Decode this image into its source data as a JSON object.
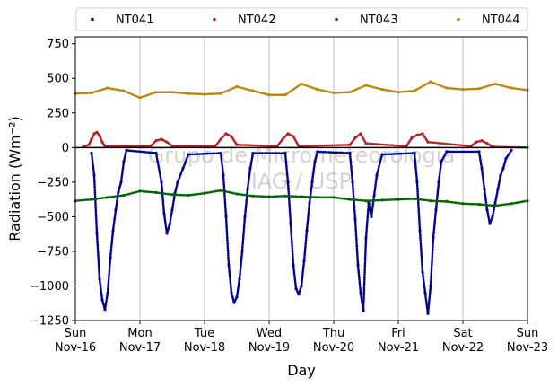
{
  "chart_data": {
    "type": "scatter",
    "xlabel": "Day",
    "ylabel": "Radiation (Wm⁻²)",
    "ylim": [
      -1250,
      800
    ],
    "yticks": [
      -1250,
      -1000,
      -750,
      -500,
      -250,
      0,
      250,
      500,
      750
    ],
    "xlim": [
      "2020-11-16",
      "2020-11-23"
    ],
    "xticks": [
      {
        "date": "2020-11-16",
        "label": "Sun\nNov-16"
      },
      {
        "date": "2020-11-17",
        "label": "Mon\nNov-17"
      },
      {
        "date": "2020-11-18",
        "label": "Tue\nNov-18"
      },
      {
        "date": "2020-11-19",
        "label": "Wed\nNov-19"
      },
      {
        "date": "2020-11-20",
        "label": "Thu\nNov-20"
      },
      {
        "date": "2020-11-21",
        "label": "Fri\nNov-21"
      },
      {
        "date": "2020-11-22",
        "label": "Sat\nNov-22"
      },
      {
        "date": "2020-11-23",
        "label": "Sun\nNov-23"
      }
    ],
    "grid": "vertical",
    "legend_position": "top",
    "watermark": [
      "Grupo de Micrometeorologia",
      "IAG / USP"
    ],
    "series": [
      {
        "name": "NT041",
        "color": "#00008b",
        "points": [
          [
            "2020-11-16T06:00",
            -40
          ],
          [
            "2020-11-16T07:00",
            -200
          ],
          [
            "2020-11-16T08:00",
            -620
          ],
          [
            "2020-11-16T09:00",
            -950
          ],
          [
            "2020-11-16T10:00",
            -1100
          ],
          [
            "2020-11-16T11:00",
            -1170
          ],
          [
            "2020-11-16T12:00",
            -1050
          ],
          [
            "2020-11-16T13:00",
            -800
          ],
          [
            "2020-11-16T14:00",
            -600
          ],
          [
            "2020-11-16T15:00",
            -450
          ],
          [
            "2020-11-16T16:00",
            -320
          ],
          [
            "2020-11-16T17:00",
            -250
          ],
          [
            "2020-11-16T18:00",
            -100
          ],
          [
            "2020-11-16T19:00",
            -20
          ],
          [
            "2020-11-17T06:00",
            -40
          ],
          [
            "2020-11-17T08:00",
            -250
          ],
          [
            "2020-11-17T09:00",
            -480
          ],
          [
            "2020-11-17T10:00",
            -620
          ],
          [
            "2020-11-17T11:00",
            -560
          ],
          [
            "2020-11-17T12:00",
            -450
          ],
          [
            "2020-11-17T13:00",
            -330
          ],
          [
            "2020-11-17T14:00",
            -250
          ],
          [
            "2020-11-17T16:00",
            -150
          ],
          [
            "2020-11-17T18:00",
            -50
          ],
          [
            "2020-11-18T06:00",
            -40
          ],
          [
            "2020-11-18T07:00",
            -200
          ],
          [
            "2020-11-18T08:00",
            -500
          ],
          [
            "2020-11-18T09:00",
            -850
          ],
          [
            "2020-11-18T10:00",
            -1050
          ],
          [
            "2020-11-18T11:00",
            -1120
          ],
          [
            "2020-11-18T12:00",
            -1080
          ],
          [
            "2020-11-18T13:00",
            -950
          ],
          [
            "2020-11-18T14:00",
            -750
          ],
          [
            "2020-11-18T15:00",
            -500
          ],
          [
            "2020-11-18T16:00",
            -300
          ],
          [
            "2020-11-18T17:00",
            -150
          ],
          [
            "2020-11-18T18:00",
            -40
          ],
          [
            "2020-11-19T06:00",
            -40
          ],
          [
            "2020-11-19T07:00",
            -250
          ],
          [
            "2020-11-19T08:00",
            -550
          ],
          [
            "2020-11-19T09:00",
            -850
          ],
          [
            "2020-11-19T10:00",
            -1020
          ],
          [
            "2020-11-19T11:00",
            -1060
          ],
          [
            "2020-11-19T12:00",
            -1000
          ],
          [
            "2020-11-19T13:00",
            -820
          ],
          [
            "2020-11-19T14:00",
            -600
          ],
          [
            "2020-11-19T15:00",
            -400
          ],
          [
            "2020-11-19T16:00",
            -250
          ],
          [
            "2020-11-19T17:00",
            -100
          ],
          [
            "2020-11-19T18:00",
            -30
          ],
          [
            "2020-11-20T06:00",
            -40
          ],
          [
            "2020-11-20T07:00",
            -250
          ],
          [
            "2020-11-20T08:00",
            -520
          ],
          [
            "2020-11-20T09:00",
            -850
          ],
          [
            "2020-11-20T10:00",
            -1050
          ],
          [
            "2020-11-20T11:00",
            -1180
          ],
          [
            "2020-11-20T12:00",
            -650
          ],
          [
            "2020-11-20T13:00",
            -400
          ],
          [
            "2020-11-20T14:00",
            -500
          ],
          [
            "2020-11-20T15:00",
            -350
          ],
          [
            "2020-11-20T16:00",
            -200
          ],
          [
            "2020-11-20T18:00",
            -50
          ],
          [
            "2020-11-21T06:00",
            -40
          ],
          [
            "2020-11-21T07:00",
            -250
          ],
          [
            "2020-11-21T08:00",
            -600
          ],
          [
            "2020-11-21T09:00",
            -900
          ],
          [
            "2020-11-21T10:00",
            -1050
          ],
          [
            "2020-11-21T11:00",
            -1200
          ],
          [
            "2020-11-21T12:00",
            -1000
          ],
          [
            "2020-11-21T13:00",
            -650
          ],
          [
            "2020-11-21T14:00",
            -450
          ],
          [
            "2020-11-21T15:00",
            -250
          ],
          [
            "2020-11-21T16:00",
            -100
          ],
          [
            "2020-11-21T18:00",
            -30
          ],
          [
            "2020-11-22T06:00",
            -30
          ],
          [
            "2020-11-22T07:00",
            -150
          ],
          [
            "2020-11-22T08:00",
            -300
          ],
          [
            "2020-11-22T09:00",
            -450
          ],
          [
            "2020-11-22T10:00",
            -550
          ],
          [
            "2020-11-22T11:00",
            -500
          ],
          [
            "2020-11-22T12:00",
            -400
          ],
          [
            "2020-11-22T13:00",
            -300
          ],
          [
            "2020-11-22T14:00",
            -200
          ],
          [
            "2020-11-22T15:00",
            -150
          ],
          [
            "2020-11-22T16:00",
            -80
          ],
          [
            "2020-11-22T18:00",
            -20
          ]
        ]
      },
      {
        "name": "NT042",
        "color": "#b22222",
        "points": [
          [
            "2020-11-16T03:00",
            5
          ],
          [
            "2020-11-16T05:00",
            20
          ],
          [
            "2020-11-16T06:00",
            60
          ],
          [
            "2020-11-16T07:00",
            100
          ],
          [
            "2020-11-16T08:00",
            110
          ],
          [
            "2020-11-16T09:00",
            85
          ],
          [
            "2020-11-16T10:00",
            40
          ],
          [
            "2020-11-16T11:00",
            10
          ],
          [
            "2020-11-17T04:00",
            10
          ],
          [
            "2020-11-17T06:00",
            50
          ],
          [
            "2020-11-17T08:00",
            60
          ],
          [
            "2020-11-17T10:00",
            40
          ],
          [
            "2020-11-17T12:00",
            10
          ],
          [
            "2020-11-18T04:00",
            10
          ],
          [
            "2020-11-18T06:00",
            60
          ],
          [
            "2020-11-18T08:00",
            100
          ],
          [
            "2020-11-18T10:00",
            80
          ],
          [
            "2020-11-18T12:00",
            20
          ],
          [
            "2020-11-19T03:00",
            10
          ],
          [
            "2020-11-19T05:00",
            60
          ],
          [
            "2020-11-19T07:00",
            100
          ],
          [
            "2020-11-19T09:00",
            80
          ],
          [
            "2020-11-19T11:00",
            10
          ],
          [
            "2020-11-20T06:00",
            20
          ],
          [
            "2020-11-20T08:00",
            70
          ],
          [
            "2020-11-20T10:00",
            100
          ],
          [
            "2020-11-20T12:00",
            30
          ],
          [
            "2020-11-21T03:00",
            10
          ],
          [
            "2020-11-21T05:00",
            70
          ],
          [
            "2020-11-21T07:00",
            90
          ],
          [
            "2020-11-21T09:00",
            100
          ],
          [
            "2020-11-21T11:00",
            40
          ],
          [
            "2020-11-22T03:00",
            10
          ],
          [
            "2020-11-22T05:00",
            40
          ],
          [
            "2020-11-22T07:00",
            50
          ],
          [
            "2020-11-22T09:00",
            30
          ],
          [
            "2020-11-22T11:00",
            5
          ],
          [
            "2020-11-23T00:00",
            0
          ]
        ]
      },
      {
        "name": "NT043",
        "color": "#006400",
        "points": [
          [
            "2020-11-16T00:00",
            -385
          ],
          [
            "2020-11-16T06:00",
            -375
          ],
          [
            "2020-11-16T12:00",
            -360
          ],
          [
            "2020-11-16T18:00",
            -345
          ],
          [
            "2020-11-17T00:00",
            -315
          ],
          [
            "2020-11-17T06:00",
            -325
          ],
          [
            "2020-11-17T12:00",
            -340
          ],
          [
            "2020-11-17T18:00",
            -345
          ],
          [
            "2020-11-18T00:00",
            -330
          ],
          [
            "2020-11-18T06:00",
            -310
          ],
          [
            "2020-11-18T12:00",
            -335
          ],
          [
            "2020-11-18T18:00",
            -350
          ],
          [
            "2020-11-19T00:00",
            -355
          ],
          [
            "2020-11-19T06:00",
            -350
          ],
          [
            "2020-11-19T12:00",
            -355
          ],
          [
            "2020-11-19T18:00",
            -360
          ],
          [
            "2020-11-20T00:00",
            -360
          ],
          [
            "2020-11-20T06:00",
            -375
          ],
          [
            "2020-11-20T12:00",
            -385
          ],
          [
            "2020-11-20T18:00",
            -380
          ],
          [
            "2020-11-21T00:00",
            -375
          ],
          [
            "2020-11-21T06:00",
            -370
          ],
          [
            "2020-11-21T12:00",
            -385
          ],
          [
            "2020-11-21T18:00",
            -390
          ],
          [
            "2020-11-22T00:00",
            -405
          ],
          [
            "2020-11-22T06:00",
            -410
          ],
          [
            "2020-11-22T12:00",
            -420
          ],
          [
            "2020-11-22T18:00",
            -405
          ],
          [
            "2020-11-23T00:00",
            -385
          ]
        ]
      },
      {
        "name": "NT044",
        "color": "#b8860b",
        "points": [
          [
            "2020-11-16T00:00",
            390
          ],
          [
            "2020-11-16T06:00",
            395
          ],
          [
            "2020-11-16T12:00",
            430
          ],
          [
            "2020-11-16T18:00",
            410
          ],
          [
            "2020-11-17T00:00",
            360
          ],
          [
            "2020-11-17T06:00",
            400
          ],
          [
            "2020-11-17T12:00",
            400
          ],
          [
            "2020-11-17T18:00",
            390
          ],
          [
            "2020-11-18T00:00",
            385
          ],
          [
            "2020-11-18T06:00",
            390
          ],
          [
            "2020-11-18T12:00",
            440
          ],
          [
            "2020-11-18T18:00",
            410
          ],
          [
            "2020-11-19T00:00",
            380
          ],
          [
            "2020-11-19T06:00",
            380
          ],
          [
            "2020-11-19T12:00",
            460
          ],
          [
            "2020-11-19T18:00",
            420
          ],
          [
            "2020-11-20T00:00",
            395
          ],
          [
            "2020-11-20T06:00",
            400
          ],
          [
            "2020-11-20T12:00",
            450
          ],
          [
            "2020-11-20T18:00",
            420
          ],
          [
            "2020-11-21T00:00",
            400
          ],
          [
            "2020-11-21T06:00",
            410
          ],
          [
            "2020-11-21T12:00",
            475
          ],
          [
            "2020-11-21T18:00",
            430
          ],
          [
            "2020-11-22T00:00",
            420
          ],
          [
            "2020-11-22T06:00",
            425
          ],
          [
            "2020-11-22T12:00",
            460
          ],
          [
            "2020-11-22T18:00",
            430
          ],
          [
            "2020-11-23T00:00",
            415
          ]
        ]
      }
    ]
  }
}
